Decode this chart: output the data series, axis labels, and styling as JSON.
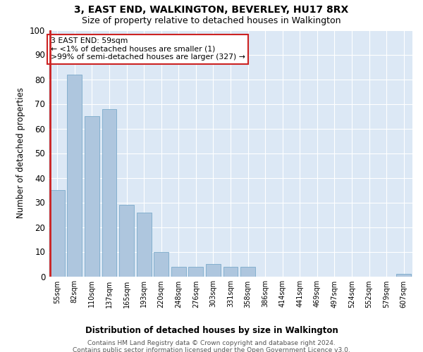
{
  "title": "3, EAST END, WALKINGTON, BEVERLEY, HU17 8RX",
  "subtitle": "Size of property relative to detached houses in Walkington",
  "xlabel": "Distribution of detached houses by size in Walkington",
  "ylabel": "Number of detached properties",
  "footer_line1": "Contains HM Land Registry data © Crown copyright and database right 2024.",
  "footer_line2": "Contains public sector information licensed under the Open Government Licence v3.0.",
  "categories": [
    "55sqm",
    "82sqm",
    "110sqm",
    "137sqm",
    "165sqm",
    "193sqm",
    "220sqm",
    "248sqm",
    "276sqm",
    "303sqm",
    "331sqm",
    "358sqm",
    "386sqm",
    "414sqm",
    "441sqm",
    "469sqm",
    "497sqm",
    "524sqm",
    "552sqm",
    "579sqm",
    "607sqm"
  ],
  "values": [
    35,
    82,
    65,
    68,
    29,
    26,
    10,
    4,
    4,
    5,
    4,
    4,
    0,
    0,
    0,
    0,
    0,
    0,
    0,
    0,
    1
  ],
  "bar_color": "#aec6de",
  "bar_edge_color": "#7aaaca",
  "highlight_bar_color": "#cc2222",
  "annotation_text": "3 EAST END: 59sqm\n← <1% of detached houses are smaller (1)\n>99% of semi-detached houses are larger (327) →",
  "annotation_box_color": "#ffffff",
  "annotation_box_edge_color": "#cc2222",
  "ylim": [
    0,
    100
  ],
  "fig_bg_color": "#ffffff",
  "plot_bg_color": "#dce8f5",
  "grid_color": "#ffffff",
  "title_fontsize": 10,
  "subtitle_fontsize": 9,
  "ylabel_text": "Number of detached properties"
}
